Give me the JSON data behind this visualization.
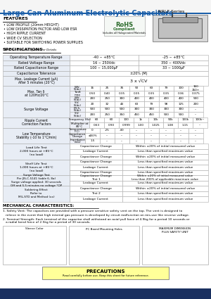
{
  "title": "Large Can Aluminum Electrolytic Capacitors",
  "series": "NRLF Series",
  "title_color": "#1A5EA8",
  "features": [
    "LOW PROFILE (20mm HEIGHT)",
    "LOW DISSIPATION FACTOR AND LOW ESR",
    "HIGH RIPPLE CURRENT",
    "WIDE CV SELECTION",
    "SUITABLE FOR SWITCHING POWER SUPPLIES"
  ],
  "part_note": "*See Part Number System for Details",
  "bg_color": "#FFFFFF",
  "blue_color": "#1A5EA8",
  "table_bg": "#E8EDF5",
  "table_border": "#AAAAAA"
}
